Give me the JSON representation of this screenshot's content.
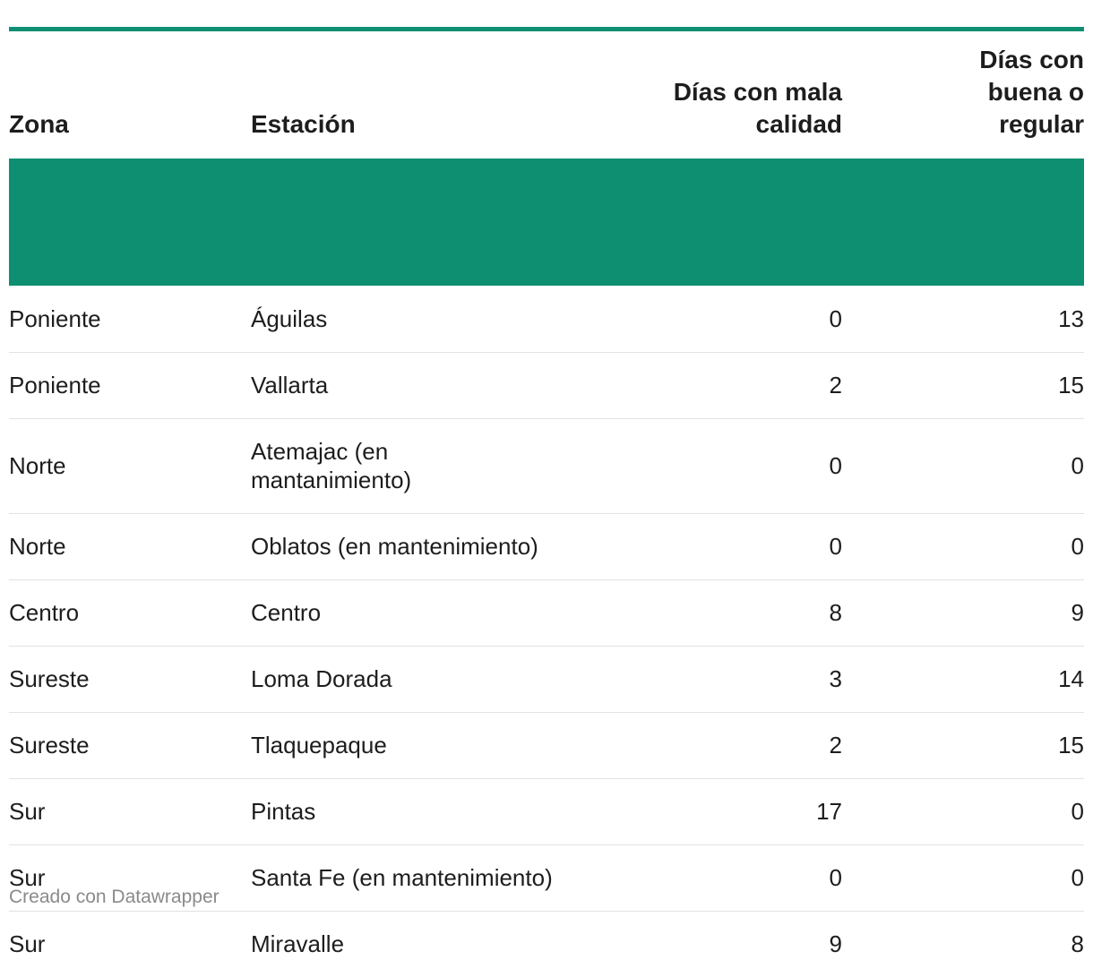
{
  "chart_data": {
    "type": "table",
    "columns": [
      "Zona",
      "Estación",
      "Días con mala calidad",
      "Días con buena o regular"
    ],
    "rows": [
      {
        "zona": "Poniente",
        "estacion": "Águilas",
        "mala": 0,
        "buena": 13
      },
      {
        "zona": "Poniente",
        "estacion": "Vallarta",
        "mala": 2,
        "buena": 15
      },
      {
        "zona": "Norte",
        "estacion": "Atemajac (en mantanimiento)",
        "mala": 0,
        "buena": 0
      },
      {
        "zona": "Norte",
        "estacion": "Oblatos (en mantenimiento)",
        "mala": 0,
        "buena": 0
      },
      {
        "zona": "Centro",
        "estacion": "Centro",
        "mala": 8,
        "buena": 9
      },
      {
        "zona": "Sureste",
        "estacion": "Loma Dorada",
        "mala": 3,
        "buena": 14
      },
      {
        "zona": "Sureste",
        "estacion": "Tlaquepaque",
        "mala": 2,
        "buena": 15
      },
      {
        "zona": "Sur",
        "estacion": "Pintas",
        "mala": 17,
        "buena": 0
      },
      {
        "zona": "Sur",
        "estacion": "Santa Fe (en mantenimiento)",
        "mala": 0,
        "buena": 0
      },
      {
        "zona": "Sur",
        "estacion": "Miravalle",
        "mala": 9,
        "buena": 8
      }
    ]
  },
  "footer": {
    "credit": "Creado con Datawrapper"
  },
  "colors": {
    "accent": "#0e8f72",
    "text": "#1d1d1d",
    "muted": "#8a8a8a",
    "row_divider": "#e2e2e2"
  }
}
